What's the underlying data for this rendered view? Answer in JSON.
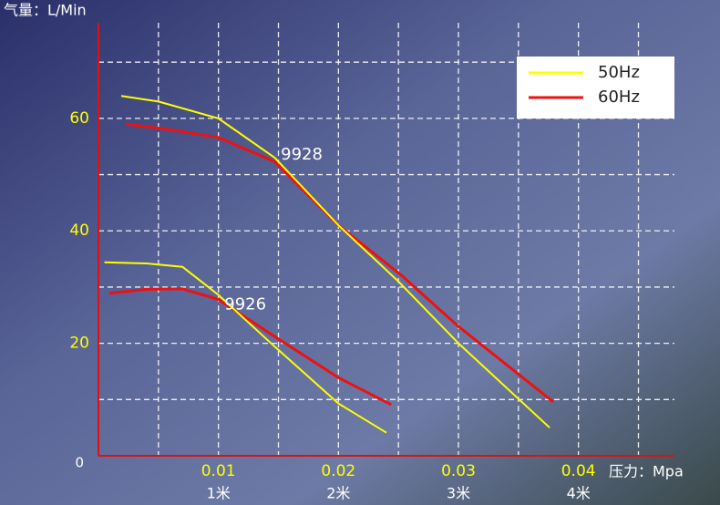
{
  "chart_data": {
    "type": "line",
    "y_axis_label": "气量：L/Min",
    "x_axis_label": "压力：Mpa",
    "xlim": [
      0,
      0.048
    ],
    "ylim": [
      0,
      77
    ],
    "xticks": [
      0.01,
      0.02,
      0.03,
      0.04
    ],
    "xtick_sublabels": [
      "1米",
      "2米",
      "3米",
      "4米"
    ],
    "yticks": [
      0,
      20,
      40,
      60
    ],
    "xgrid": [
      0.005,
      0.01,
      0.015,
      0.02,
      0.025,
      0.03,
      0.035,
      0.04,
      0.045
    ],
    "ygrid": [
      10,
      20,
      30,
      40,
      50,
      60,
      70
    ],
    "legend": [
      "50Hz",
      "60Hz"
    ],
    "legend_colors": [
      "#ffff00",
      "#ee1111"
    ],
    "series": [
      {
        "name": "50Hz",
        "color": "#ffff00",
        "x": [
          0.0019,
          0.005,
          0.01,
          0.0147,
          0.02,
          0.025,
          0.03,
          0.0376
        ],
        "values": [
          64,
          63,
          60,
          53,
          41,
          31,
          20,
          5
        ]
      },
      {
        "name": "60Hz",
        "color": "#ee1111",
        "x": [
          0.0023,
          0.006,
          0.01,
          0.0147,
          0.02,
          0.0253,
          0.03,
          0.0379
        ],
        "values": [
          59,
          58,
          56.6,
          52.3,
          41,
          32,
          23,
          9.6
        ]
      },
      {
        "name": "50Hz",
        "color": "#ffff00",
        "x": [
          0.0005,
          0.004,
          0.007,
          0.01,
          0.0147,
          0.02,
          0.024
        ],
        "values": [
          34.4,
          34.2,
          33.6,
          28.6,
          19.4,
          9.3,
          4.1
        ]
      },
      {
        "name": "60Hz",
        "color": "#ee1111",
        "x": [
          0.0009,
          0.004,
          0.007,
          0.01,
          0.0147,
          0.02,
          0.0244
        ],
        "values": [
          28.9,
          29.6,
          29.7,
          27.8,
          21.2,
          13.9,
          9.1
        ]
      }
    ],
    "annotations": [
      {
        "text": "9928",
        "x": 0.0152,
        "y": 53.5
      },
      {
        "text": "9926",
        "x": 0.0105,
        "y": 26.8
      }
    ]
  }
}
